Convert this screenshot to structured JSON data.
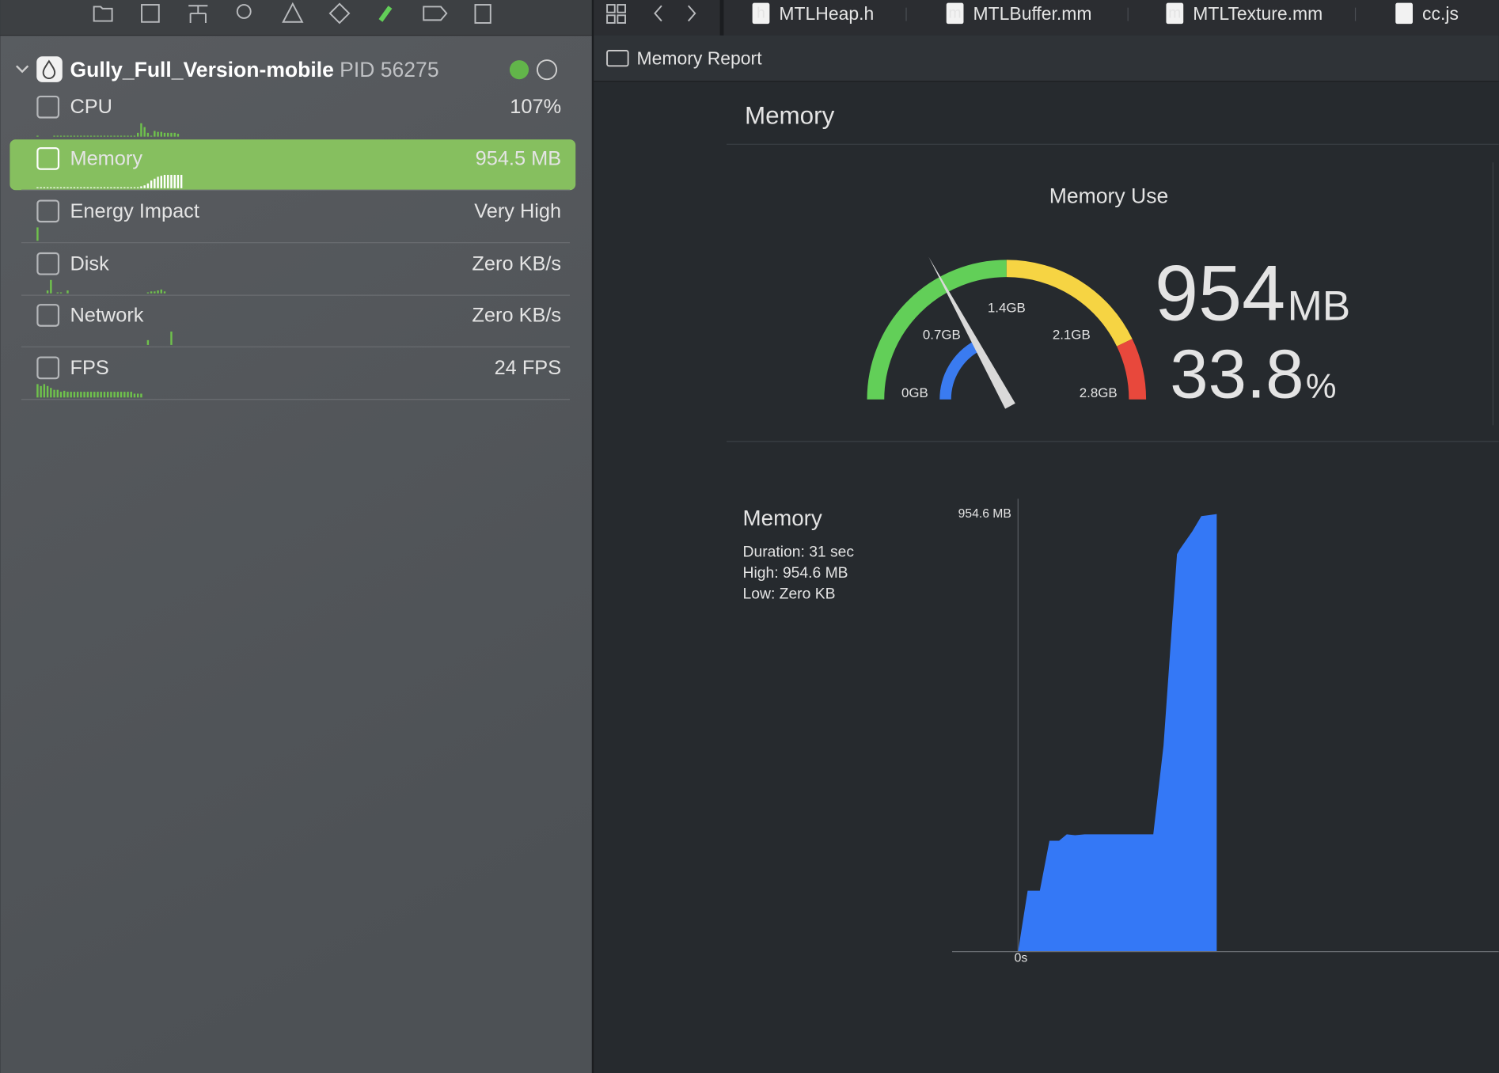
{
  "tabs": [
    {
      "icon_letter": "h",
      "title": "MTLHeap.h"
    },
    {
      "icon_letter": "m",
      "title": "MTLBuffer.mm"
    },
    {
      "icon_letter": "m",
      "title": "MTLTexture.mm"
    },
    {
      "title": "cc.js"
    }
  ],
  "breadcrumb": "Memory Report",
  "navigator": {
    "process_name": "Gully_Full_Version-mobile",
    "pid": "PID 56275",
    "rows": [
      {
        "name": "CPU",
        "value": "107%",
        "spark": [
          1,
          0,
          0,
          0,
          0,
          1,
          1,
          1,
          1,
          1,
          1,
          1,
          1,
          1,
          1,
          1,
          1,
          1,
          1,
          1,
          1,
          1,
          1,
          1,
          1,
          1,
          1,
          1,
          1,
          1,
          4,
          14,
          10,
          4,
          1,
          6,
          5,
          5,
          4,
          4,
          4,
          4,
          3
        ]
      },
      {
        "name": "Memory",
        "value": "954.5 MB",
        "selected": true,
        "spark": [
          1,
          1,
          1,
          1,
          1,
          1,
          1,
          1,
          1,
          1,
          1,
          1,
          1,
          1,
          1,
          1,
          1,
          1,
          1,
          1,
          1,
          1,
          1,
          1,
          1,
          1,
          1,
          1,
          1,
          1,
          1,
          2,
          3,
          5,
          8,
          10,
          12,
          13,
          14,
          14,
          14,
          14,
          14,
          14
        ]
      },
      {
        "name": "Energy Impact",
        "value": "Very High",
        "spark": [
          14
        ]
      },
      {
        "name": "Disk",
        "value": "Zero KB/s",
        "spark": [
          0,
          0,
          0,
          3,
          14,
          0,
          1,
          1,
          0,
          3,
          0,
          0,
          0,
          0,
          0,
          0,
          0,
          0,
          0,
          0,
          0,
          0,
          0,
          0,
          0,
          0,
          0,
          0,
          0,
          0,
          0,
          0,
          0,
          1,
          2,
          2,
          3,
          4,
          2
        ]
      },
      {
        "name": "Network",
        "value": "Zero KB/s",
        "spark": [
          0,
          0,
          0,
          0,
          0,
          0,
          0,
          0,
          0,
          0,
          0,
          0,
          0,
          0,
          0,
          0,
          0,
          0,
          0,
          0,
          0,
          0,
          0,
          0,
          0,
          0,
          0,
          0,
          0,
          0,
          0,
          0,
          0,
          5,
          0,
          0,
          0,
          0,
          0,
          0,
          14
        ]
      },
      {
        "name": "FPS",
        "value": "24 FPS",
        "spark": [
          14,
          12,
          14,
          12,
          10,
          8,
          8,
          6,
          7,
          6,
          6,
          6,
          6,
          6,
          6,
          6,
          6,
          6,
          6,
          6,
          6,
          6,
          6,
          6,
          6,
          6,
          6,
          6,
          6,
          4,
          4,
          4
        ]
      }
    ]
  },
  "report": {
    "heading": "Memory",
    "gauge": {
      "title": "Memory Use",
      "value": 954,
      "unit": "MB",
      "percent": 33.8,
      "percent_unit": "%",
      "range": [
        0,
        2800
      ],
      "ticks": [
        {
          "value": 0,
          "label": "0GB"
        },
        {
          "value": 700,
          "label": "0.7GB"
        },
        {
          "value": 1400,
          "label": "1.4GB"
        },
        {
          "value": 2100,
          "label": "2.1GB"
        },
        {
          "value": 2800,
          "label": "2.8GB"
        }
      ],
      "zones": [
        {
          "from": 0,
          "to": 1400,
          "color": "#62cf58"
        },
        {
          "from": 1400,
          "to": 2400,
          "color": "#f6d443"
        },
        {
          "from": 2400,
          "to": 2800,
          "color": "#e8483c"
        }
      ],
      "usage_color": "#3a7bf0"
    }
  },
  "chart_data": {
    "type": "area",
    "title": "Memory",
    "stats": [
      "Duration: 31 sec",
      "High: 954.6 MB",
      "Low: Zero KB"
    ],
    "x": [
      0,
      1.5,
      3.4,
      4.9,
      6.4,
      7.6,
      8.9,
      10.4,
      21.1,
      22.7,
      24.8,
      25.2,
      27.2,
      28.6,
      31
    ],
    "values": [
      0,
      133,
      133,
      242,
      242,
      256,
      254,
      256,
      256,
      450,
      867,
      877,
      917,
      950,
      954.6
    ],
    "xlim": [
      0,
      75
    ],
    "ylim": [
      0,
      954.6
    ],
    "xticks": [
      {
        "value": 0,
        "label": "0s"
      }
    ],
    "yticks": [
      {
        "value": 954.6,
        "label": "954.6 MB"
      }
    ],
    "color": "#3478f6"
  }
}
